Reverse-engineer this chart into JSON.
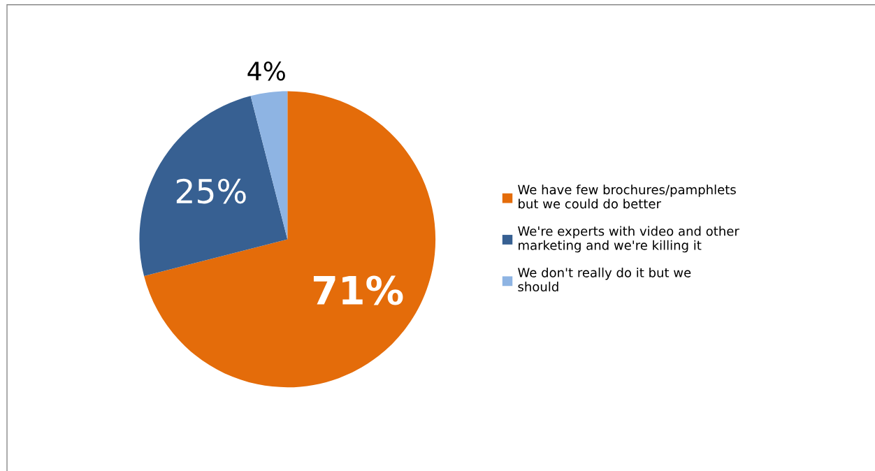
{
  "chart_data": {
    "type": "pie",
    "categories": [
      "We have few brochures/pamphlets but we could do better",
      "We're experts with video and other marketing and we're killing it",
      "We don't really do it but we should"
    ],
    "values": [
      71,
      25,
      4
    ],
    "colors": [
      "#e46c0a",
      "#376092",
      "#8eb4e3"
    ],
    "value_labels": [
      "71%",
      "25%",
      "4%"
    ],
    "legend": "right"
  }
}
